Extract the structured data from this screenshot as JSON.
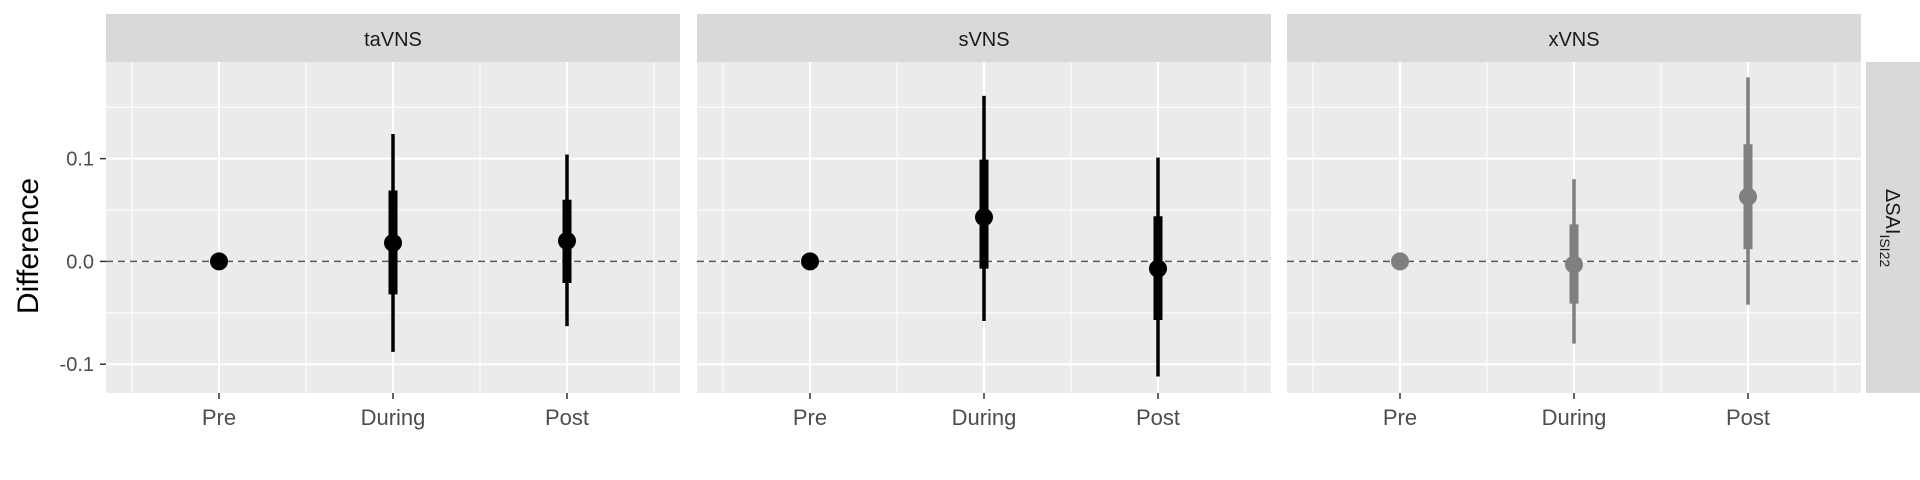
{
  "chart_data": {
    "type": "point-interval",
    "ylabel": "Difference",
    "row_strip": {
      "main": "ΔSAI",
      "sub": "ISI22"
    },
    "categories": [
      "Pre",
      "During",
      "Post"
    ],
    "yticks": [
      0.1,
      0.0,
      -0.1
    ],
    "ytick_labels": [
      "0.1",
      "0.0",
      "-0.1"
    ],
    "ylim": [
      -0.128,
      0.194
    ],
    "reference_line": 0,
    "panels": [
      {
        "title": "taVNS",
        "color": "#000000",
        "points": [
          {
            "x": "Pre",
            "y": 0.0,
            "lo50": 0.0,
            "hi50": 0.0,
            "lo95": 0.0,
            "hi95": 0.0
          },
          {
            "x": "During",
            "y": 0.018,
            "lo50": -0.032,
            "hi50": 0.069,
            "lo95": -0.088,
            "hi95": 0.124
          },
          {
            "x": "Post",
            "y": 0.02,
            "lo50": -0.021,
            "hi50": 0.06,
            "lo95": -0.063,
            "hi95": 0.104
          }
        ]
      },
      {
        "title": "sVNS",
        "color": "#000000",
        "points": [
          {
            "x": "Pre",
            "y": 0.0,
            "lo50": 0.0,
            "hi50": 0.0,
            "lo95": 0.0,
            "hi95": 0.0
          },
          {
            "x": "During",
            "y": 0.043,
            "lo50": -0.007,
            "hi50": 0.099,
            "lo95": -0.058,
            "hi95": 0.161
          },
          {
            "x": "Post",
            "y": -0.007,
            "lo50": -0.057,
            "hi50": 0.044,
            "lo95": -0.112,
            "hi95": 0.101
          }
        ]
      },
      {
        "title": "xVNS",
        "color": "#808080",
        "points": [
          {
            "x": "Pre",
            "y": 0.0,
            "lo50": 0.0,
            "hi50": 0.0,
            "lo95": 0.0,
            "hi95": 0.0
          },
          {
            "x": "During",
            "y": -0.003,
            "lo50": -0.041,
            "hi50": 0.036,
            "lo95": -0.08,
            "hi95": 0.08
          },
          {
            "x": "Post",
            "y": 0.063,
            "lo50": 0.012,
            "hi50": 0.114,
            "lo95": -0.042,
            "hi95": 0.179
          }
        ]
      }
    ]
  }
}
